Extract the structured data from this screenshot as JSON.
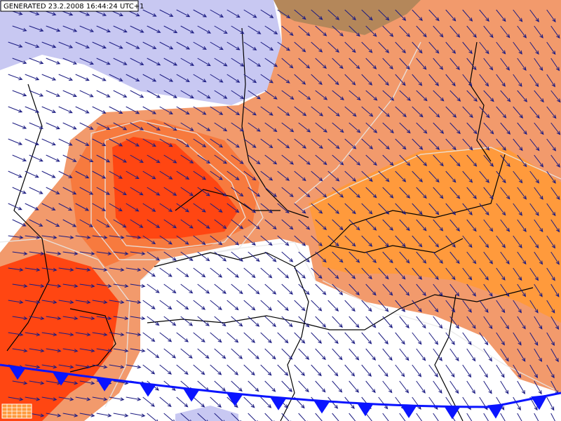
{
  "header": {
    "generated": "GENERATED 23.2.2008 16:44:24 UTC+1"
  }
}
